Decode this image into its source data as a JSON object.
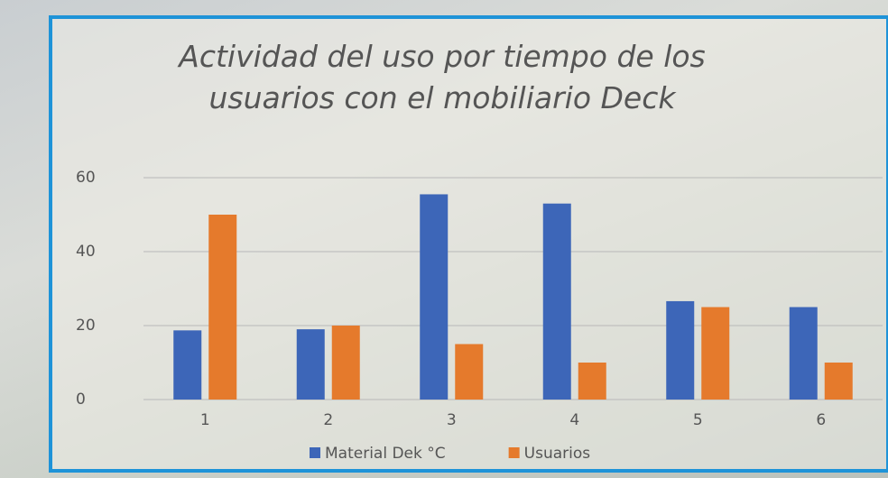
{
  "chart_data": {
    "type": "bar",
    "title": "Actividad del uso por tiempo de los usuarios con el mobiliario Deck",
    "categories": [
      "1",
      "2",
      "3",
      "4",
      "5",
      "6"
    ],
    "series": [
      {
        "name": "Material Dek °C",
        "color": "#3d66b8",
        "values": [
          18.7,
          19,
          55.5,
          53,
          26.6,
          25
        ]
      },
      {
        "name": "Usuarios",
        "color": "#e57a2c",
        "values": [
          50,
          20,
          15,
          10,
          25,
          10
        ]
      }
    ],
    "ylim": [
      0,
      60
    ],
    "yticks": [
      0,
      20,
      40,
      60
    ],
    "grid": true
  }
}
